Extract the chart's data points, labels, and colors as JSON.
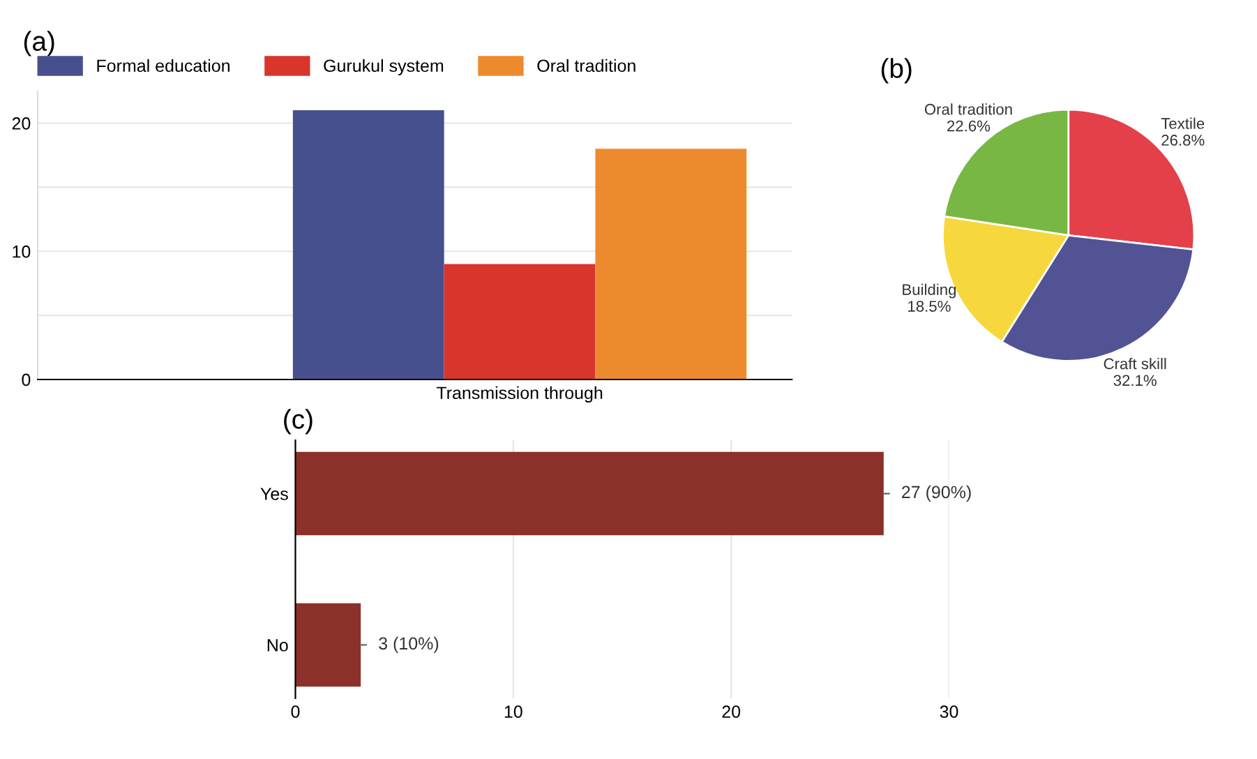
{
  "chart_data": [
    {
      "type": "bar",
      "title": "(a)",
      "categories": [
        "Transmission through"
      ],
      "series": [
        {
          "name": "Formal education",
          "color": "#47508f",
          "values": [
            21
          ]
        },
        {
          "name": "Gurukul system",
          "color": "#d8352d",
          "values": [
            9
          ]
        },
        {
          "name": "Oral tradition",
          "color": "#ee8a2e",
          "values": [
            18
          ]
        }
      ],
      "ylim": [
        0,
        22.5
      ],
      "yticks": [
        0,
        {
          "value": 5,
          "label": null
        },
        10,
        {
          "value": 15,
          "label": null
        },
        20
      ],
      "grid": "y",
      "legend": "top left"
    },
    {
      "type": "pie",
      "title": "(b)",
      "categories": [
        "Textile",
        "Craft skill",
        "Building",
        "Oral tradition"
      ],
      "values": [
        26.8,
        32.1,
        18.5,
        22.6
      ],
      "value_labels": [
        "26.8%",
        "32.1%",
        "18.5%",
        "22.6%"
      ],
      "colors": [
        "#e4404a",
        "#525394",
        "#f6d83e",
        "#78b744"
      ]
    },
    {
      "type": "bar",
      "title": "(c)",
      "orientation": "horizontal",
      "categories": [
        "Yes",
        "No"
      ],
      "values": [
        27,
        3
      ],
      "color": "#8b3129",
      "value_labels": [
        "27 (90%)",
        "3 (10%)"
      ],
      "xlim": [
        0,
        30
      ],
      "xticks": [
        0,
        10,
        20,
        30
      ],
      "grid": "x"
    }
  ]
}
